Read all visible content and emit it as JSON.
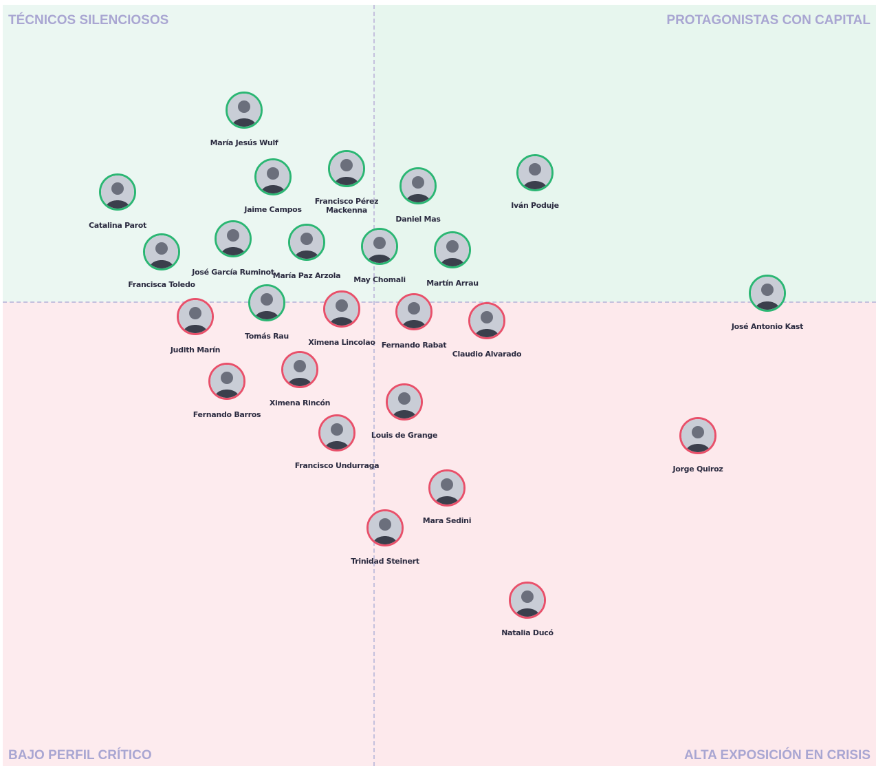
{
  "quadrants": {
    "top_left": "TÉCNICOS SILENCIOSOS",
    "top_right": "PROTAGONISTAS CON CAPITAL",
    "bottom_left": "BAJO PERFIL CRÍTICO",
    "bottom_right": "ALTA EXPOSICIÓN EN CRISIS"
  },
  "nodes": [
    {
      "label": "María Jesús Wulf",
      "color": "#2bb673"
    },
    {
      "label": "Catalina Parot",
      "color": "#2bb673"
    },
    {
      "label": "Jaime Campos",
      "color": "#2bb673"
    },
    {
      "label": "Francisco Pérez Mackenna",
      "color": "#2bb673"
    },
    {
      "label": "Daniel Mas",
      "color": "#2bb673"
    },
    {
      "label": "Iván Poduje",
      "color": "#2bb673"
    },
    {
      "label": "José García Ruminot",
      "color": "#2bb673"
    },
    {
      "label": "María Paz Arzola",
      "color": "#2bb673"
    },
    {
      "label": "May Chomali",
      "color": "#2bb673"
    },
    {
      "label": "Martín Arrau",
      "color": "#2bb673"
    },
    {
      "label": "Francisca Toledo",
      "color": "#2bb673"
    },
    {
      "label": "José Antonio Kast",
      "color": "#2bb673"
    },
    {
      "label": "Tomás Rau",
      "color": "#2bb673"
    },
    {
      "label": "Judith Marín",
      "color": "#e8506a"
    },
    {
      "label": "Ximena Lincolao",
      "color": "#e8506a"
    },
    {
      "label": "Fernando Rabat",
      "color": "#e8506a"
    },
    {
      "label": "Claudio Alvarado",
      "color": "#e8506a"
    },
    {
      "label": "Ximena Rincón",
      "color": "#e8506a"
    },
    {
      "label": "Fernando Barros",
      "color": "#e8506a"
    },
    {
      "label": "Louis de Grange",
      "color": "#e8506a"
    },
    {
      "label": "Francisco Undurraga",
      "color": "#e8506a"
    },
    {
      "label": "Jorge Quiroz",
      "color": "#e8506a"
    },
    {
      "label": "Mara Sedini",
      "color": "#e8506a"
    },
    {
      "label": "Trinidad Steinert",
      "color": "#e8506a"
    },
    {
      "label": "Natalia Ducó",
      "color": "#e8506a"
    }
  ]
}
